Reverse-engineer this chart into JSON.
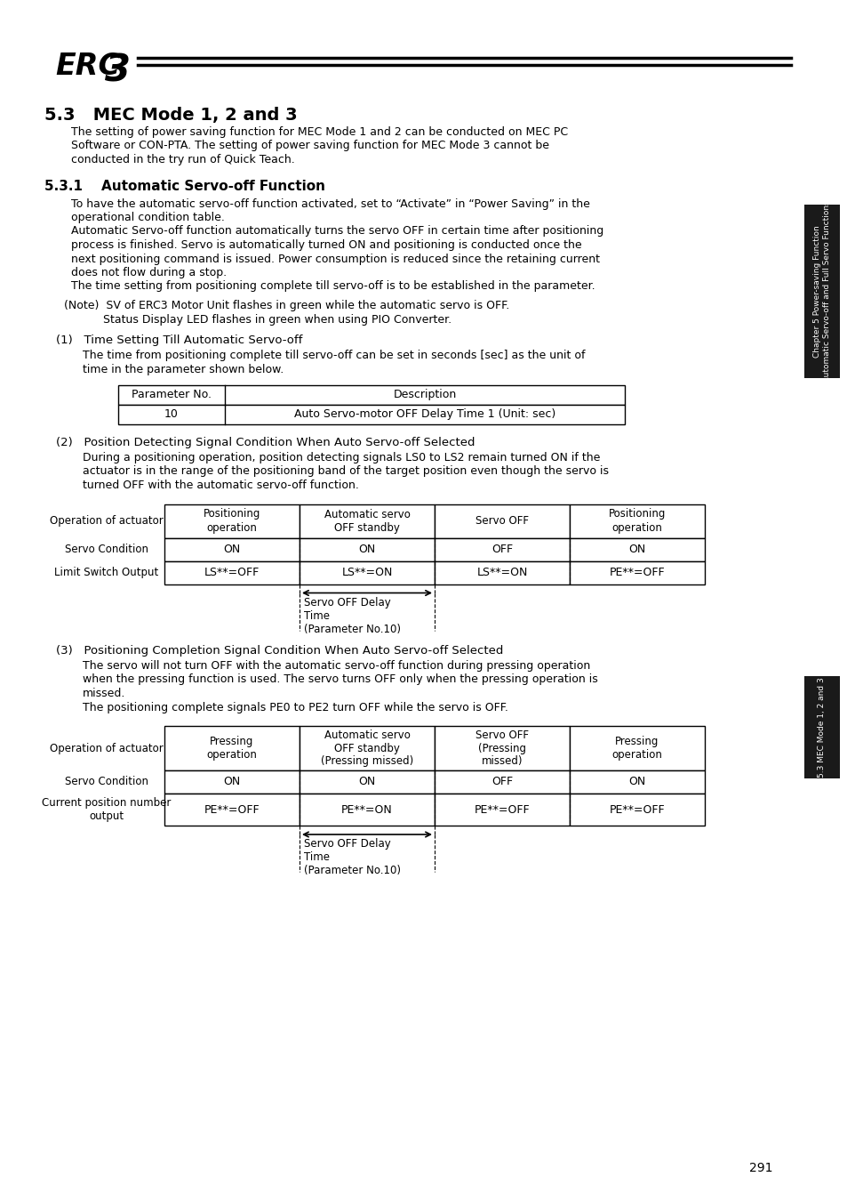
{
  "title_main": "5.3   MEC Mode 1, 2 and 3",
  "para_main_lines": [
    "The setting of power saving function for MEC Mode 1 and 2 can be conducted on MEC PC",
    "Software or CON-PTA. The setting of power saving function for MEC Mode 3 cannot be",
    "conducted in the try run of Quick Teach."
  ],
  "section_311": "5.3.1    Automatic Servo-off Function",
  "para_311_1_lines": [
    "To have the automatic servo-off function activated, set to “Activate” in “Power Saving” in the",
    "operational condition table."
  ],
  "para_311_2_lines": [
    "Automatic Servo-off function automatically turns the servo OFF in certain time after positioning",
    "process is finished. Servo is automatically turned ON and positioning is conducted once the",
    "next positioning command is issued. Power consumption is reduced since the retaining current",
    "does not flow during a stop."
  ],
  "para_311_3_lines": [
    "The time setting from positioning complete till servo-off is to be established in the parameter."
  ],
  "note_line1": "(Note)  SV of ERC3 Motor Unit flashes in green while the automatic servo is OFF.",
  "note_line2": "           Status Display LED flashes in green when using PIO Converter.",
  "section_1_title": "(1)   Time Setting Till Automatic Servo-off",
  "section_1_para_lines": [
    "The time from positioning complete till servo-off can be set in seconds [sec] as the unit of",
    "time in the parameter shown below."
  ],
  "table1_col1_header": "Parameter No.",
  "table1_col2_header": "Description",
  "table1_row1_c1": "10",
  "table1_row1_c2": "Auto Servo-motor OFF Delay Time 1 (Unit: sec)",
  "section_2_title": "(2)   Position Detecting Signal Condition When Auto Servo-off Selected",
  "section_2_para_lines": [
    "During a positioning operation, position detecting signals LS0 to LS2 remain turned ON if the",
    "actuator is in the range of the positioning band of the target position even though the servo is",
    "turned OFF with the automatic servo-off function."
  ],
  "table2_col_headers": [
    "Positioning\noperation",
    "Automatic servo\nOFF standby",
    "Servo OFF",
    "Positioning\noperation"
  ],
  "table2_row_labels": [
    "Operation of actuator",
    "Servo Condition",
    "Limit Switch Output"
  ],
  "table2_servo": [
    "ON",
    "ON",
    "OFF",
    "ON"
  ],
  "table2_ls": [
    "LS**=OFF",
    "LS**=ON",
    "LS**=ON",
    "PE**=OFF"
  ],
  "table2_arrow_label": "Servo OFF Delay\nTime\n(Parameter No.10)",
  "section_3_title": "(3)   Positioning Completion Signal Condition When Auto Servo-off Selected",
  "section_3_para_lines": [
    "The servo will not turn OFF with the automatic servo-off function during pressing operation",
    "when the pressing function is used. The servo turns OFF only when the pressing operation is",
    "missed.",
    "The positioning complete signals PE0 to PE2 turn OFF while the servo is OFF."
  ],
  "table3_col_headers": [
    "Pressing\noperation",
    "Automatic servo\nOFF standby\n(Pressing missed)",
    "Servo OFF\n(Pressing\nmissed)",
    "Pressing\noperation"
  ],
  "table3_row_labels": [
    "Operation of actuator",
    "Servo Condition",
    "Current position number\noutput"
  ],
  "table3_servo": [
    "ON",
    "ON",
    "OFF",
    "ON"
  ],
  "table3_pe": [
    "PE**=OFF",
    "PE**=ON",
    "PE**=OFF",
    "PE**=OFF"
  ],
  "table3_arrow_label": "Servo OFF Delay\nTime\n(Parameter No.10)",
  "sidebar_top_line1": "Chapter 5 Power-saving Function",
  "sidebar_top_line2": "(Automatic Servo-off and Full Servo Functions)",
  "sidebar_bottom": "5.3 MEC Mode 1, 2 and 3",
  "page_number": "291"
}
